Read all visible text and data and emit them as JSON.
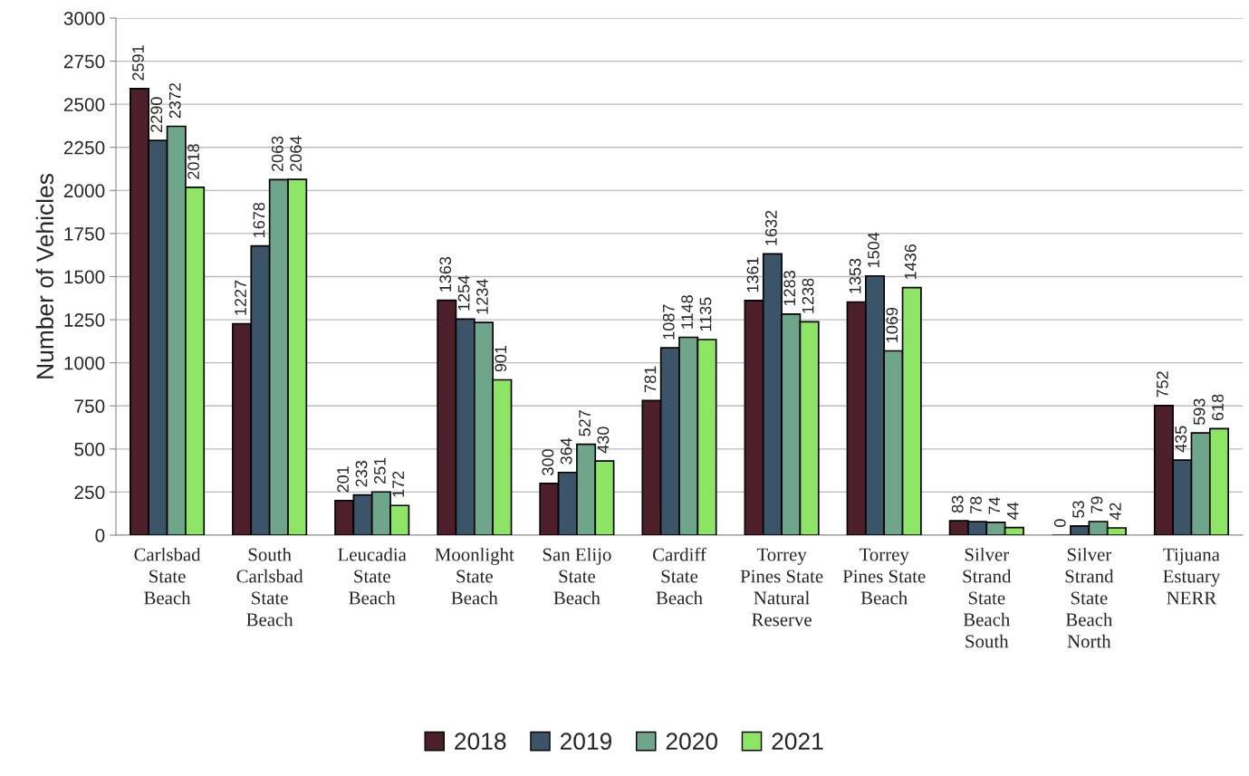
{
  "chart_data": {
    "type": "bar",
    "ylabel": "Number of Vehicles",
    "categories": [
      "Carlsbad\nState\nBeach",
      "South\nCarlsbad\nState\nBeach",
      "Leucadia\nState\nBeach",
      "Moonlight\nState\nBeach",
      "San Elijo\nState\nBeach",
      "Cardiff\nState\nBeach",
      "Torrey\nPines State\nNatural\nReserve",
      "Torrey\nPines State\nBeach",
      "Silver\nStrand\nState\nBeach\nSouth",
      "Silver\nStrand\nState\nBeach\nNorth",
      "Tijuana\nEstuary\nNERR"
    ],
    "series": [
      {
        "name": "2018",
        "color": "#4d1f2b",
        "values": [
          2591,
          1227,
          201,
          1363,
          300,
          781,
          1361,
          1353,
          83,
          0,
          752
        ]
      },
      {
        "name": "2019",
        "color": "#3c5468",
        "values": [
          2290,
          1678,
          233,
          1254,
          364,
          1087,
          1632,
          1504,
          78,
          53,
          435
        ]
      },
      {
        "name": "2020",
        "color": "#6fa68b",
        "values": [
          2372,
          2063,
          251,
          1234,
          527,
          1148,
          1283,
          1069,
          74,
          79,
          593
        ]
      },
      {
        "name": "2021",
        "color": "#8ee465",
        "values": [
          2018,
          2064,
          172,
          901,
          430,
          1135,
          1238,
          1436,
          44,
          42,
          618
        ]
      }
    ],
    "ylim": [
      0,
      3000
    ],
    "yticks": [
      0,
      250,
      500,
      750,
      1000,
      1250,
      1500,
      1750,
      2000,
      2250,
      2500,
      2750,
      3000
    ],
    "grid": "y",
    "legend": "bottom",
    "data_labels": true
  }
}
